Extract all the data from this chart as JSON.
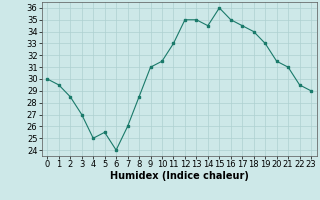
{
  "x": [
    0,
    1,
    2,
    3,
    4,
    5,
    6,
    7,
    8,
    9,
    10,
    11,
    12,
    13,
    14,
    15,
    16,
    17,
    18,
    19,
    20,
    21,
    22,
    23
  ],
  "y": [
    30,
    29.5,
    28.5,
    27,
    25,
    25.5,
    24,
    26,
    28.5,
    31,
    31.5,
    33,
    35,
    35,
    34.5,
    36,
    35,
    34.5,
    34,
    33,
    31.5,
    31,
    29.5,
    29
  ],
  "line_color": "#1a7a6a",
  "marker": "s",
  "marker_size": 2,
  "bg_color": "#cde8e8",
  "grid_color": "#aed0d0",
  "xlabel": "Humidex (Indice chaleur)",
  "ylim": [
    23.5,
    36.5
  ],
  "yticks": [
    24,
    25,
    26,
    27,
    28,
    29,
    30,
    31,
    32,
    33,
    34,
    35,
    36
  ],
  "xticks": [
    0,
    1,
    2,
    3,
    4,
    5,
    6,
    7,
    8,
    9,
    10,
    11,
    12,
    13,
    14,
    15,
    16,
    17,
    18,
    19,
    20,
    21,
    22,
    23
  ],
  "xlabel_fontsize": 7,
  "tick_fontsize": 6
}
